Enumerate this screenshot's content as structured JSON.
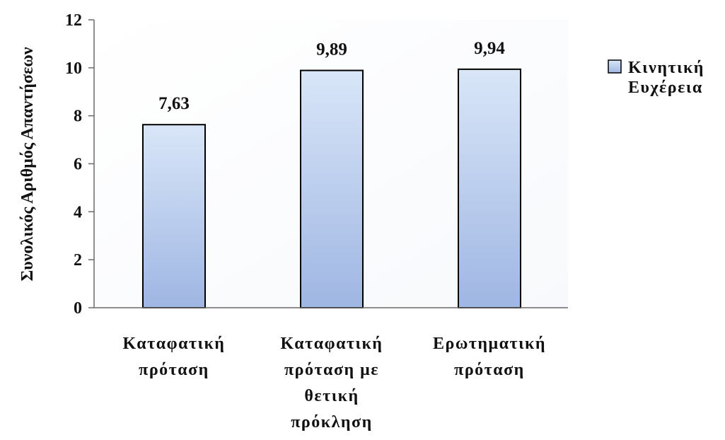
{
  "chart_data": {
    "type": "bar",
    "categories": [
      [
        "Καταφατική",
        "πρόταση"
      ],
      [
        "Καταφατική",
        "πρόταση με",
        "θετική",
        "πρόκληση"
      ],
      [
        "Ερωτηματική",
        "πρόταση"
      ]
    ],
    "series": [
      {
        "name": "Κινητική Ευχέρεια",
        "legend_lines": [
          "Κινητική",
          "Ευχέρεια"
        ],
        "values": [
          7.63,
          9.89,
          9.94
        ],
        "value_labels": [
          "7,63",
          "9,89",
          "9,94"
        ],
        "color_top": "#d9e6f8",
        "color_bottom": "#9fb6e3",
        "stroke": "#000000"
      }
    ],
    "title": "",
    "xlabel": "",
    "ylabel": "Συνολικός Αριθμός Απαντήσεων",
    "ylim": [
      0,
      12
    ],
    "yticks": [
      0,
      2,
      4,
      6,
      8,
      10,
      12
    ],
    "grid": false,
    "legend_position": "top-right",
    "plot_background_colors": [
      "#ffffff",
      "#f7f9fc"
    ]
  }
}
